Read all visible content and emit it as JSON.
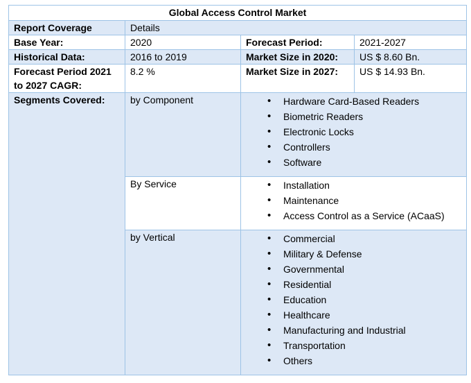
{
  "title": "Global Access Control Market",
  "header": {
    "col1": "Report Coverage",
    "col2": "Details"
  },
  "base_year": {
    "label": "Base Year:",
    "value": "2020"
  },
  "forecast_period": {
    "label": "Forecast Period:",
    "value": "2021-2027"
  },
  "historical_data": {
    "label": "Historical Data:",
    "value": "2016 to 2019"
  },
  "market_size_2020": {
    "label": "Market Size in 2020:",
    "value": "US $ 8.60 Bn."
  },
  "cagr": {
    "label": "Forecast Period 2021 to 2027 CAGR:",
    "value": "8.2 %"
  },
  "market_size_2027": {
    "label": "Market Size in 2027:",
    "value": "US $ 14.93 Bn."
  },
  "segments_label": "Segments Covered:",
  "segments": [
    {
      "name": "by Component",
      "items": [
        "Hardware Card-Based Readers",
        "Biometric Readers",
        "Electronic Locks",
        "Controllers",
        "Software"
      ]
    },
    {
      "name": "By Service",
      "items": [
        "Installation",
        "Maintenance",
        "Access Control as a Service (ACaaS)"
      ]
    },
    {
      "name": "by Vertical",
      "items": [
        "Commercial",
        "Military & Defense",
        "Governmental",
        "Residential",
        "Education",
        "Healthcare",
        "Manufacturing and Industrial",
        "Transportation",
        "Others"
      ]
    }
  ]
}
